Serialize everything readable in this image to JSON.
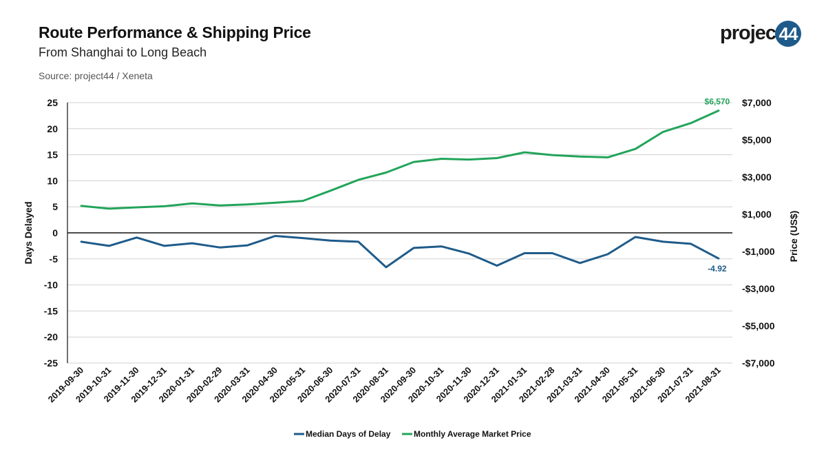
{
  "header": {
    "title": "Route Performance & Shipping Price",
    "subtitle": "From Shanghai to Long Beach",
    "source": "Source: project44 / Xeneta"
  },
  "logo": {
    "text": "project",
    "badge": "44"
  },
  "colors": {
    "delay": "#1e5b8a",
    "price": "#22a45a",
    "grid": "#d0d0d0",
    "axis": "#111111"
  },
  "chart_data": {
    "type": "line",
    "x": [
      "2019-09-30",
      "2019-10-31",
      "2019-11-30",
      "2019-12-31",
      "2020-01-31",
      "2020-02-29",
      "2020-03-31",
      "2020-04-30",
      "2020-05-31",
      "2020-06-30",
      "2020-07-31",
      "2020-08-31",
      "2020-09-30",
      "2020-10-31",
      "2020-11-30",
      "2020-12-31",
      "2021-01-31",
      "2021-02-28",
      "2021-03-31",
      "2021-04-30",
      "2021-05-31",
      "2021-06-30",
      "2021-07-31",
      "2021-08-31"
    ],
    "series": [
      {
        "name": "Median Days of Delay",
        "axis": "left",
        "values": [
          -1.7,
          -2.5,
          -0.9,
          -2.5,
          -2.0,
          -2.8,
          -2.4,
          -0.6,
          -1.0,
          -1.5,
          -1.7,
          -6.6,
          -2.9,
          -2.6,
          -4.0,
          -6.3,
          -3.9,
          -3.9,
          -5.8,
          -4.1,
          -0.8,
          -1.7,
          -2.1,
          -4.92
        ],
        "end_label": "-4.92"
      },
      {
        "name": "Monthly Average Market Price",
        "axis": "right",
        "values": [
          1450,
          1300,
          1370,
          1430,
          1580,
          1470,
          1530,
          1620,
          1720,
          2270,
          2850,
          3240,
          3810,
          3980,
          3940,
          4020,
          4330,
          4180,
          4100,
          4060,
          4510,
          5430,
          5900,
          6570
        ],
        "end_label": "$6,570"
      }
    ],
    "y_left": {
      "label": "Days Delayed",
      "min": -25,
      "max": 25,
      "ticks": [
        25,
        20,
        15,
        10,
        5,
        0,
        -5,
        -10,
        -15,
        -20,
        -25
      ],
      "tick_labels": [
        "25",
        "20",
        "15",
        "10",
        "5",
        "0",
        "-5",
        "-10",
        "-15",
        "-20",
        "-25"
      ]
    },
    "y_right": {
      "label": "Price (US$)",
      "min": -7000,
      "max": 7000,
      "ticks": [
        7000,
        5000,
        3000,
        1000,
        -1000,
        -3000,
        -5000,
        -7000
      ],
      "tick_labels": [
        "$7,000",
        "$5,000",
        "$3,000",
        "$1,000",
        "-$1,000",
        "-$3,000",
        "-$5,000",
        "-$7,000"
      ]
    },
    "grid": true,
    "legend": "bottom-center"
  }
}
